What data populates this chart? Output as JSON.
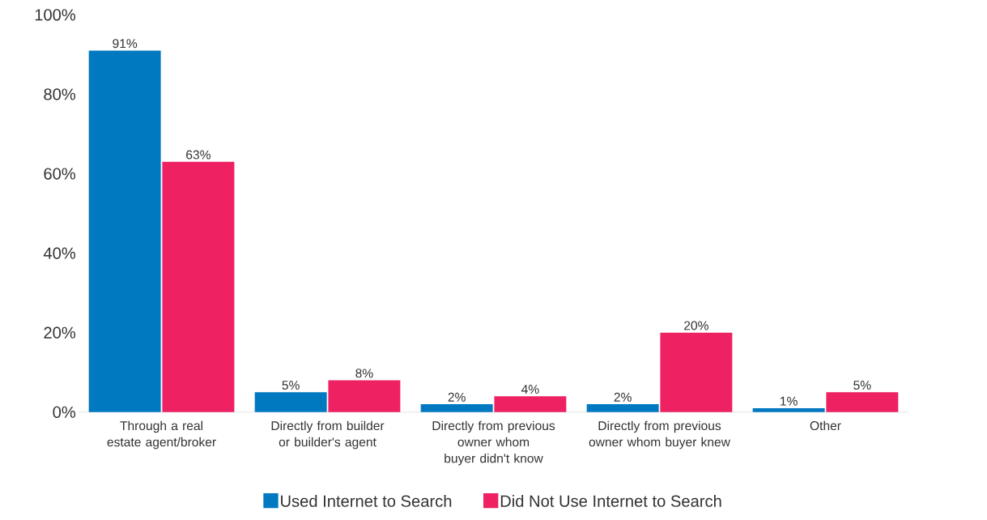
{
  "chart_data": {
    "type": "bar",
    "categories": [
      "Through a real estate agent/broker",
      "Directly from builder or builder's agent",
      "Directly from previous owner whom buyer didn't know",
      "Directly from previous owner whom buyer knew",
      "Other"
    ],
    "series": [
      {
        "name": "Used Internet to Search",
        "color": "#0079c1",
        "values": [
          91,
          5,
          2,
          2,
          1
        ],
        "value_labels": [
          "91%",
          "5%",
          "2%",
          "2%",
          "1%"
        ]
      },
      {
        "name": "Did Not Use Internet to Search",
        "color": "#ee2163",
        "values": [
          63,
          8,
          4,
          20,
          5
        ],
        "value_labels": [
          "63%",
          "8%",
          "4%",
          "20%",
          "5%"
        ]
      }
    ],
    "ylim": [
      0,
      100
    ],
    "yticks": [
      {
        "value": 0,
        "label": "0%"
      },
      {
        "value": 20,
        "label": "20%"
      },
      {
        "value": 40,
        "label": "40%"
      },
      {
        "value": 60,
        "label": "60%"
      },
      {
        "value": 80,
        "label": "80%"
      },
      {
        "value": 100,
        "label": "100%"
      }
    ],
    "legend": "bottom"
  }
}
